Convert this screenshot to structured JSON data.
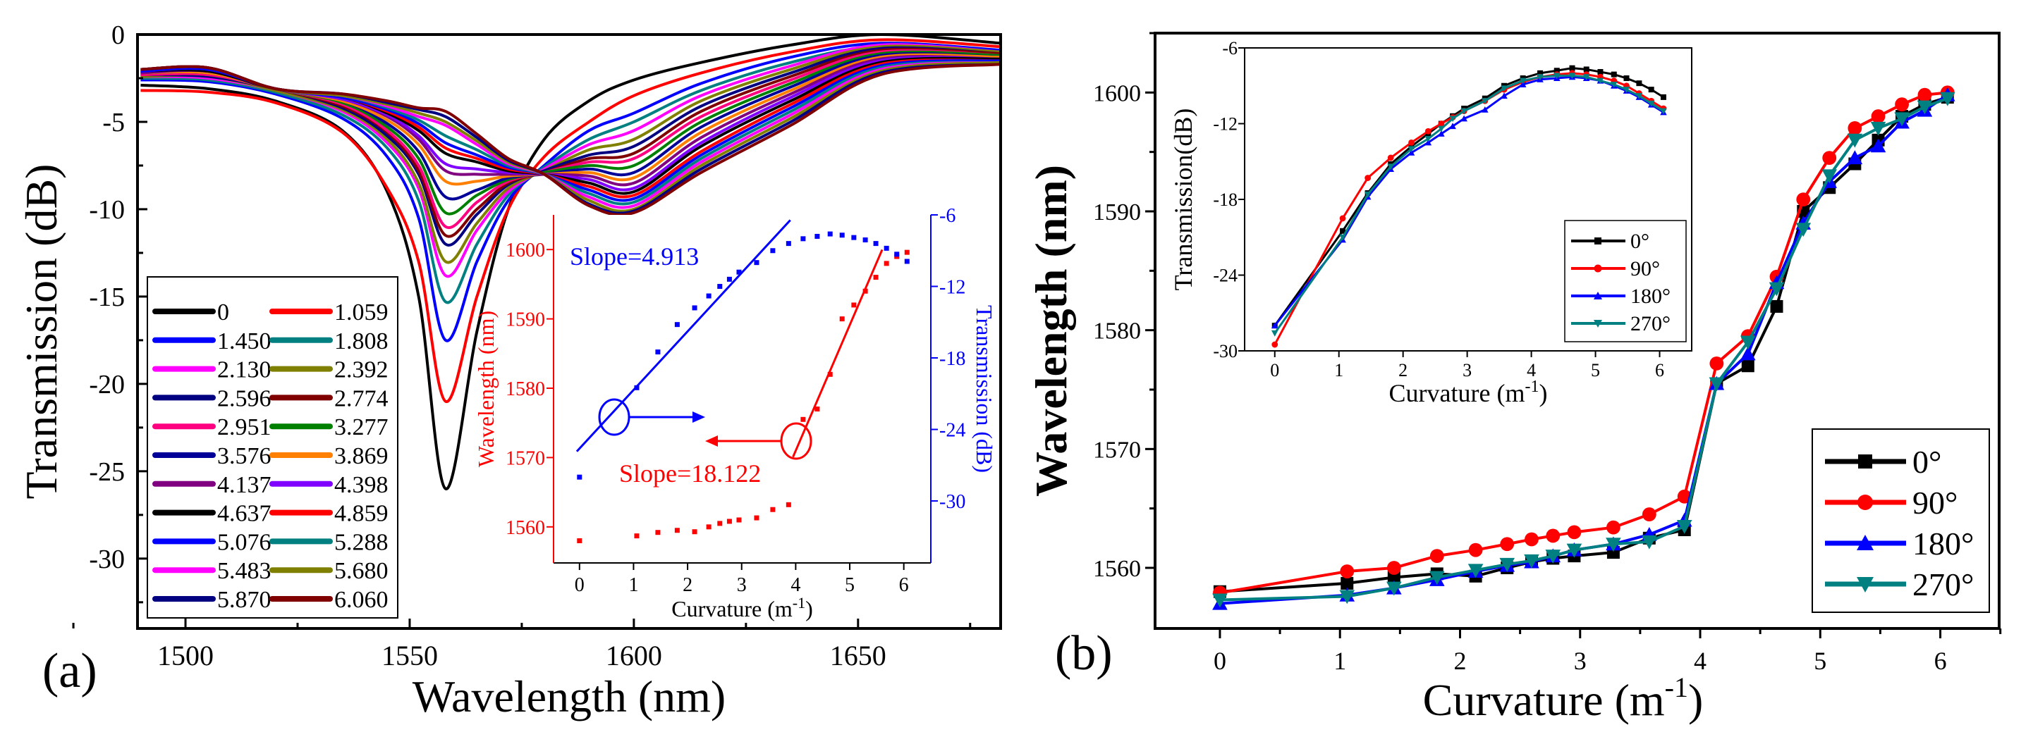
{
  "chart_data": [
    {
      "panel": "(a)",
      "type": "line",
      "xlabel": "Wavelength (nm)",
      "ylabel": "Transmission (dB)",
      "xlim": [
        1489.3,
        1681.8
      ],
      "ylim": [
        -34,
        0
      ],
      "xticks": [
        1500,
        1550,
        1600,
        1650
      ],
      "yticks": [
        0,
        -5,
        -10,
        -15,
        -20,
        -25,
        -30
      ],
      "legend_position": "bottom-left",
      "x": [
        1490,
        1505,
        1520,
        1535,
        1545,
        1552,
        1558,
        1565,
        1572,
        1580,
        1590,
        1600,
        1615,
        1635,
        1655,
        1682
      ],
      "series": [
        {
          "name": "0",
          "color": "#000000",
          "values": [
            -2.9,
            -3.1,
            -3.8,
            -5.5,
            -9,
            -15,
            -26,
            -17,
            -10,
            -6,
            -3.8,
            -2.6,
            -1.6,
            -0.6,
            0,
            -0.5
          ]
        },
        {
          "name": "1.059",
          "color": "#ff0000",
          "values": [
            -3.2,
            -3.3,
            -3.9,
            -5.6,
            -8.8,
            -13,
            -21,
            -15,
            -10,
            -7,
            -5,
            -3.5,
            -2.2,
            -1,
            -0.3,
            -0.7
          ]
        },
        {
          "name": "1.450",
          "color": "#0000ff",
          "values": [
            -2.6,
            -2.7,
            -3.4,
            -4.8,
            -7,
            -10.5,
            -17.5,
            -13,
            -9.5,
            -7.5,
            -5.5,
            -4.5,
            -2.8,
            -1.3,
            -0.5,
            -0.9
          ]
        },
        {
          "name": "1.808",
          "color": "#008080",
          "values": [
            -2.5,
            -2.6,
            -3.3,
            -4.6,
            -6.5,
            -9.5,
            -15.3,
            -12,
            -9.2,
            -7.6,
            -6,
            -5,
            -3.2,
            -1.6,
            -0.7,
            -1.3
          ]
        },
        {
          "name": "2.130",
          "color": "#ff00ff",
          "values": [
            -2.4,
            -2.5,
            -3.2,
            -4.4,
            -6.2,
            -8.8,
            -13.8,
            -11.2,
            -9,
            -7.7,
            -6.3,
            -5.5,
            -3.5,
            -1.8,
            -0.6,
            -1.0
          ]
        },
        {
          "name": "2.392",
          "color": "#808000",
          "values": [
            -2.4,
            -2.4,
            -3.2,
            -4.3,
            -6,
            -8.5,
            -13,
            -10.8,
            -8.8,
            -7.8,
            -6.6,
            -6,
            -3.8,
            -2,
            -0.7,
            -1.0
          ]
        },
        {
          "name": "2.596",
          "color": "#000080",
          "values": [
            -2.3,
            -2.4,
            -3.1,
            -4.2,
            -5.8,
            -8,
            -12,
            -10.3,
            -8.6,
            -7.8,
            -6.9,
            -6.4,
            -4.1,
            -2.2,
            -0.8,
            -1.1
          ]
        },
        {
          "name": "2.774",
          "color": "#800000",
          "values": [
            -2.3,
            -2.3,
            -3.1,
            -4.1,
            -5.6,
            -7.8,
            -11.5,
            -10,
            -8.5,
            -7.9,
            -7.1,
            -6.8,
            -4.4,
            -2.4,
            -0.9,
            -1.1
          ]
        },
        {
          "name": "2.951",
          "color": "#ff0080",
          "values": [
            -2.3,
            -2.3,
            -3.1,
            -4,
            -5.5,
            -7.5,
            -11,
            -9.6,
            -8.4,
            -7.9,
            -7.3,
            -7.1,
            -4.7,
            -2.6,
            -1,
            -1.2
          ]
        },
        {
          "name": "3.277",
          "color": "#008000",
          "values": [
            -2.2,
            -2.2,
            -3.1,
            -3.9,
            -5.3,
            -7.1,
            -10.2,
            -9.2,
            -8.3,
            -7.9,
            -7.5,
            -7.5,
            -5,
            -2.8,
            -1.1,
            -1.2
          ]
        },
        {
          "name": "3.576",
          "color": "#000099",
          "values": [
            -2.2,
            -2.2,
            -3.1,
            -3.8,
            -5.1,
            -6.7,
            -9.3,
            -8.9,
            -8.2,
            -8,
            -7.7,
            -7.9,
            -5.3,
            -3,
            -1.2,
            -1.3
          ]
        },
        {
          "name": "3.869",
          "color": "#ff8000",
          "values": [
            -2.2,
            -2.2,
            -3.1,
            -3.8,
            -4.9,
            -6.3,
            -8.4,
            -8.4,
            -8.1,
            -8,
            -7.9,
            -8.2,
            -5.6,
            -3.2,
            -1.3,
            -1.3
          ]
        },
        {
          "name": "4.137",
          "color": "#800080",
          "values": [
            -2.2,
            -2.1,
            -3.1,
            -3.7,
            -4.7,
            -6,
            -7.8,
            -8,
            -8,
            -8,
            -8.1,
            -8.5,
            -5.9,
            -3.4,
            -1.4,
            -1.4
          ]
        },
        {
          "name": "4.398",
          "color": "#8000ff",
          "values": [
            -2.1,
            -2.1,
            -3.1,
            -3.7,
            -4.6,
            -5.8,
            -7.4,
            -7.7,
            -7.9,
            -8,
            -8.3,
            -8.8,
            -6.2,
            -3.6,
            -1.5,
            -1.4
          ]
        },
        {
          "name": "4.637",
          "color": "#000000",
          "values": [
            -2.1,
            -2.1,
            -3.1,
            -3.6,
            -4.5,
            -5.5,
            -6.8,
            -7.3,
            -7.8,
            -8,
            -8.5,
            -9,
            -6.4,
            -3.8,
            -1.6,
            -1.4
          ]
        },
        {
          "name": "4.859",
          "color": "#ff0000",
          "values": [
            -2.1,
            -2.0,
            -3.1,
            -3.6,
            -4.4,
            -5.3,
            -6.5,
            -7.1,
            -7.7,
            -8,
            -8.7,
            -9.2,
            -6.7,
            -4,
            -1.7,
            -1.5
          ]
        },
        {
          "name": "5.076",
          "color": "#0000ff",
          "values": [
            -2.1,
            -2.0,
            -3.1,
            -3.6,
            -4.3,
            -5.1,
            -6.2,
            -6.9,
            -7.6,
            -8,
            -8.9,
            -9.4,
            -6.9,
            -4.2,
            -1.8,
            -1.5
          ]
        },
        {
          "name": "5.288",
          "color": "#008080",
          "values": [
            -2.0,
            -1.9,
            -3.1,
            -3.5,
            -4.2,
            -4.9,
            -5.8,
            -6.6,
            -7.5,
            -8,
            -9.1,
            -9.6,
            -7.1,
            -4.4,
            -1.9,
            -1.6
          ]
        },
        {
          "name": "5.483",
          "color": "#ff00ff",
          "values": [
            -2.0,
            -1.9,
            -3.1,
            -3.5,
            -4.1,
            -4.7,
            -5.2,
            -6.3,
            -7.4,
            -8,
            -9.3,
            -9.8,
            -7.3,
            -4.6,
            -2,
            -1.6
          ]
        },
        {
          "name": "5.680",
          "color": "#808000",
          "values": [
            -2.0,
            -1.9,
            -3.1,
            -3.5,
            -4.0,
            -4.5,
            -5.0,
            -6.1,
            -7.3,
            -8,
            -9.5,
            -10,
            -7.5,
            -4.8,
            -2.1,
            -1.6
          ]
        },
        {
          "name": "5.870",
          "color": "#000080",
          "values": [
            -2.0,
            -1.9,
            -3.1,
            -3.4,
            -3.9,
            -4.3,
            -4.7,
            -5.9,
            -7.2,
            -8,
            -9.7,
            -10.1,
            -7.7,
            -5,
            -2.2,
            -1.7
          ]
        },
        {
          "name": "6.060",
          "color": "#800000",
          "values": [
            -2.0,
            -1.9,
            -3.1,
            -3.4,
            -3.8,
            -4.2,
            -4.4,
            -5.7,
            -7.1,
            -8,
            -9.8,
            -10.2,
            -7.9,
            -5.2,
            -2.3,
            -1.7
          ]
        }
      ],
      "inset": {
        "type": "scatter",
        "xlabel": "Curvature (m-1)",
        "xlabel_main": "Curvature (m",
        "xlabel_sup": "-1",
        "xlabel_close": ")",
        "ylabel_left": "Wavelength (nm)",
        "ylabel_right": "Transmission (dB)",
        "xlim": [
          -0.48,
          6.5
        ],
        "ylim_left": [
          1554.8,
          1605
        ],
        "ylim_right": [
          -35.2,
          -6
        ],
        "xticks": [
          0,
          1,
          2,
          3,
          4,
          5,
          6
        ],
        "yticks_left": [
          1560,
          1570,
          1580,
          1590,
          1600
        ],
        "yticks_right": [
          -6,
          -12,
          -18,
          -24,
          -30
        ],
        "left_color": "#ff0000",
        "right_color": "#0000ff",
        "x": [
          0,
          1.059,
          1.45,
          1.808,
          2.13,
          2.392,
          2.596,
          2.774,
          2.951,
          3.277,
          3.576,
          3.869,
          4.137,
          4.398,
          4.637,
          4.859,
          5.076,
          5.288,
          5.483,
          5.68,
          5.87,
          6.06
        ],
        "wavelength": [
          1558,
          1558.7,
          1559.2,
          1559.5,
          1559.3,
          1560,
          1560.5,
          1560.8,
          1561,
          1561.3,
          1562.5,
          1563.2,
          1575.5,
          1577,
          1582,
          1590,
          1592,
          1594,
          1596,
          1598,
          1599,
          1599.6
        ],
        "transmission": [
          -28,
          -20.5,
          -17.5,
          -15.2,
          -13.8,
          -12.8,
          -12,
          -11.4,
          -10.8,
          -10,
          -9,
          -8.4,
          -8,
          -7.8,
          -7.6,
          -7.7,
          -7.9,
          -8.1,
          -8.4,
          -8.8,
          -9.3,
          -9.9
        ],
        "fits": [
          {
            "label": "Slope=4.913",
            "axis": "right",
            "slope": 4.913,
            "intercept": -25.6,
            "xrange": [
              -0.05,
              3.9
            ],
            "color": "#0000ff"
          },
          {
            "label": "Slope=18.122",
            "axis": "left",
            "slope": 18.122,
            "intercept": 1498.5,
            "xrange": [
              3.95,
              5.6
            ],
            "color": "#ff0000"
          }
        ]
      }
    },
    {
      "panel": "(b)",
      "type": "line",
      "xlabel": "Curvature (m-1)",
      "xlabel_main": "Curvature (m",
      "xlabel_sup": "-1",
      "xlabel_close": ")",
      "ylabel": "Wavelength (nm)",
      "xlim": [
        -0.54,
        6.49
      ],
      "ylim": [
        1554.9,
        1605
      ],
      "xticks": [
        0,
        1,
        2,
        3,
        4,
        5,
        6
      ],
      "yticks": [
        1560,
        1570,
        1580,
        1590,
        1600
      ],
      "legend_position": "bottom-right",
      "x": [
        0,
        1.059,
        1.45,
        1.808,
        2.13,
        2.392,
        2.596,
        2.774,
        2.951,
        3.277,
        3.576,
        3.869,
        4.137,
        4.398,
        4.637,
        4.859,
        5.076,
        5.288,
        5.483,
        5.68,
        5.87,
        6.06
      ],
      "series": [
        {
          "name": "0°",
          "color": "#000000",
          "marker": "square",
          "values": [
            1558,
            1558.7,
            1559.2,
            1559.5,
            1559.3,
            1560,
            1560.5,
            1560.8,
            1561,
            1561.3,
            1562.5,
            1563.2,
            1575.5,
            1577,
            1582,
            1590,
            1592,
            1594,
            1596,
            1598,
            1599,
            1599.6
          ]
        },
        {
          "name": "90°",
          "color": "#ff0000",
          "marker": "circle",
          "values": [
            1557.9,
            1559.7,
            1560,
            1561,
            1561.5,
            1562,
            1562.4,
            1562.7,
            1563,
            1563.4,
            1564.5,
            1566,
            1577.2,
            1579.5,
            1584.5,
            1591,
            1594.5,
            1597,
            1598,
            1599,
            1599.8,
            1600
          ]
        },
        {
          "name": "180°",
          "color": "#0000ff",
          "marker": "triangle-up",
          "values": [
            1557,
            1557.7,
            1558.3,
            1559,
            1559.7,
            1560.2,
            1560.5,
            1561,
            1561.5,
            1562,
            1562.8,
            1564,
            1575.5,
            1578,
            1584,
            1589,
            1592.5,
            1594.5,
            1595.5,
            1597.5,
            1598.5,
            1599.8
          ]
        },
        {
          "name": "270°",
          "color": "#008080",
          "marker": "triangle-down",
          "values": [
            1557.3,
            1557.6,
            1558.3,
            1559.2,
            1559.8,
            1560.3,
            1560.6,
            1561,
            1561.5,
            1562,
            1562.2,
            1563.5,
            1575.5,
            1579,
            1583.5,
            1588.5,
            1593,
            1596,
            1597,
            1597.8,
            1598.8,
            1599.5
          ]
        }
      ],
      "inset": {
        "type": "line",
        "xlabel": "Curvature (m-1)",
        "xlabel_main": "Curvature (m",
        "xlabel_sup": "-1",
        "xlabel_close": ")",
        "ylabel": "Transmission(dB)",
        "xlim": [
          -0.47,
          6.5
        ],
        "ylim": [
          -30,
          -6
        ],
        "xticks": [
          0,
          1,
          2,
          3,
          4,
          5,
          6
        ],
        "yticks": [
          -6,
          -12,
          -18,
          -24,
          -30
        ],
        "legend_position": "bottom-right",
        "series": [
          {
            "name": "0°",
            "color": "#000000",
            "marker": "square",
            "values": [
              -28,
              -20.5,
              -17.5,
              -15.2,
              -13.8,
              -12.8,
              -12,
              -11.4,
              -10.8,
              -10,
              -9,
              -8.4,
              -8,
              -7.8,
              -7.6,
              -7.7,
              -7.9,
              -8.1,
              -8.4,
              -8.8,
              -9.3,
              -9.9
            ]
          },
          {
            "name": "90°",
            "color": "#ff0000",
            "marker": "circle",
            "values": [
              -29.5,
              -19.5,
              -16.3,
              -14.7,
              -13.5,
              -12.6,
              -12,
              -11.5,
              -11,
              -10.2,
              -9.3,
              -8.7,
              -8.3,
              -8.1,
              -8.0,
              -8.1,
              -8.3,
              -8.6,
              -9,
              -9.6,
              -10.2,
              -10.8
            ]
          },
          {
            "name": "180°",
            "color": "#0000ff",
            "marker": "triangle-up",
            "values": [
              -28,
              -21.2,
              -17.8,
              -15.6,
              -14.3,
              -13.5,
              -12.8,
              -12.2,
              -11.6,
              -10.9,
              -9.8,
              -8.9,
              -8.5,
              -8.4,
              -8.3,
              -8.4,
              -8.6,
              -9,
              -9.4,
              -9.9,
              -10.5,
              -11.1
            ]
          },
          {
            "name": "270°",
            "color": "#008080",
            "marker": "triangle-down",
            "values": [
              -28.6,
              -21,
              -17.6,
              -15.4,
              -14,
              -13.2,
              -12.4,
              -11.6,
              -11,
              -10.2,
              -9.2,
              -8.6,
              -8.3,
              -8.2,
              -8.2,
              -8.3,
              -8.6,
              -8.9,
              -9.3,
              -9.8,
              -10.4,
              -11
            ]
          }
        ]
      }
    }
  ]
}
